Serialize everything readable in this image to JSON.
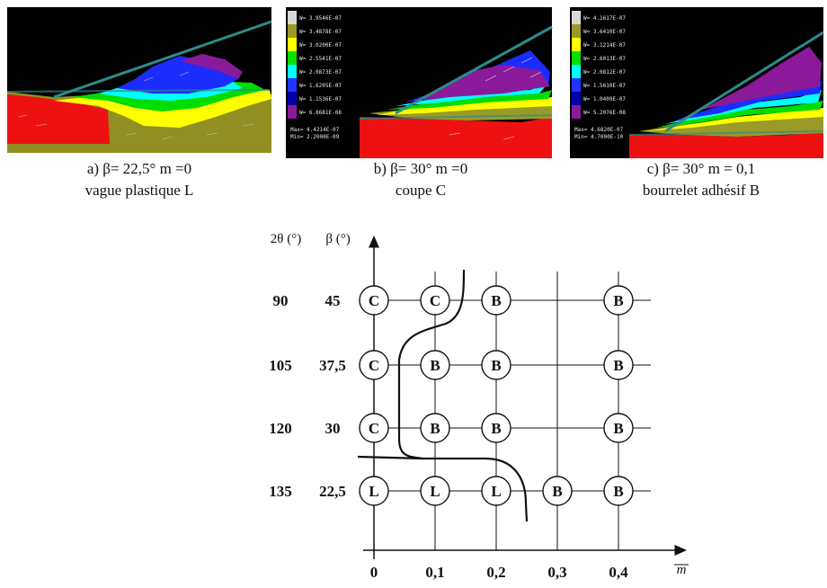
{
  "panels": [
    {
      "id": "a",
      "caption_line1": "a) β= 22,5° m =0",
      "caption_line2": "vague plastique L",
      "legend": []
    },
    {
      "id": "b",
      "caption_line1": "b) β= 30° m =0",
      "caption_line2": "coupe C",
      "legend": [
        "W= 3.9546E-07",
        "W= 3.4878E-07",
        "W= 3.0200E-07",
        "W= 2.5541E-07",
        "W= 2.0873E-07",
        "W= 1.6205E-07",
        "W= 1.1536E-07",
        "W= 6.8681E-08"
      ],
      "legend_extra": [
        "Max= 4.4214E-07",
        "Min= 2.2000E-09"
      ]
    },
    {
      "id": "c",
      "caption_line1": "c) β= 30° m = 0,1",
      "caption_line2": "bourrelet adhésif B",
      "legend": [
        "W= 4.1617E-07",
        "W= 3.6410E-07",
        "W= 3.1214E-07",
        "W= 2.6013E-07",
        "W= 2.0812E-07",
        "W= 1.5610E-07",
        "W= 1.0409E-07",
        "W= 5.2076E-08"
      ],
      "legend_extra": [
        "Max= 4.6820E-07",
        "Min= 4.7000E-10"
      ]
    }
  ],
  "diagram": {
    "y_header_theta": "2θ (°)",
    "y_header_beta": "β (°)",
    "x_axis_symbol": "m",
    "x_ticks": [
      "0",
      "0,1",
      "0,2",
      "0,3",
      "0,4"
    ],
    "x_values": [
      0,
      0.1,
      0.2,
      0.3,
      0.4
    ],
    "rows": [
      {
        "theta": "90",
        "beta": "45",
        "nodes": [
          {
            "x": 0,
            "label": "C"
          },
          {
            "x": 0.1,
            "label": "C"
          },
          {
            "x": 0.2,
            "label": "B"
          },
          {
            "x": 0.4,
            "label": "B"
          }
        ]
      },
      {
        "theta": "105",
        "beta": "37,5",
        "nodes": [
          {
            "x": 0,
            "label": "C"
          },
          {
            "x": 0.1,
            "label": "B"
          },
          {
            "x": 0.2,
            "label": "B"
          },
          {
            "x": 0.4,
            "label": "B"
          }
        ]
      },
      {
        "theta": "120",
        "beta": "30",
        "nodes": [
          {
            "x": 0,
            "label": "C"
          },
          {
            "x": 0.1,
            "label": "B"
          },
          {
            "x": 0.2,
            "label": "B"
          },
          {
            "x": 0.4,
            "label": "B"
          }
        ]
      },
      {
        "theta": "135",
        "beta": "22,5",
        "nodes": [
          {
            "x": 0,
            "label": "L"
          },
          {
            "x": 0.1,
            "label": "L"
          },
          {
            "x": 0.2,
            "label": "L"
          },
          {
            "x": 0.3,
            "label": "B"
          },
          {
            "x": 0.4,
            "label": "B"
          }
        ]
      }
    ],
    "legend_colors": [
      "#d9d9d9",
      "#9a9a28",
      "#ffff00",
      "#00e000",
      "#00ffff",
      "#2233ff",
      "#0000a8",
      "#8a1a9a"
    ]
  }
}
